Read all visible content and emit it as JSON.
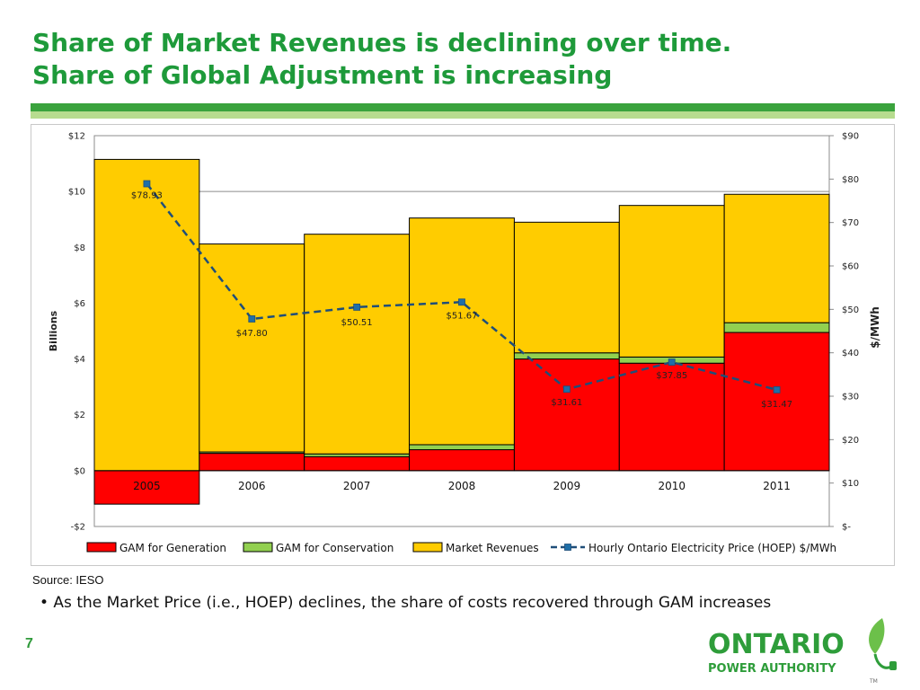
{
  "header": {
    "title_line1": "Share of Market Revenues is declining over time.",
    "title_line2": "Share of  Global Adjustment is increasing"
  },
  "colors": {
    "title_green": "#1e9a3a",
    "gam_generation": "#ff0000",
    "gam_conservation": "#92d050",
    "market_revenues": "#ffcc00",
    "hoep_line": "#1f4e79",
    "hoep_marker": "#1f6fa8"
  },
  "chart_data": {
    "type": "bar",
    "stacked": true,
    "categories": [
      "2005",
      "2006",
      "2007",
      "2008",
      "2009",
      "2010",
      "2011"
    ],
    "series": [
      {
        "name": "GAM for Generation",
        "type": "bar",
        "axis": "left",
        "values": [
          -1.2,
          0.62,
          0.5,
          0.75,
          4.0,
          3.85,
          4.95
        ]
      },
      {
        "name": "GAM for Conservation",
        "type": "bar",
        "axis": "left",
        "values": [
          0,
          0.05,
          0.1,
          0.18,
          0.22,
          0.22,
          0.35
        ]
      },
      {
        "name": "Market Revenues",
        "type": "bar",
        "axis": "left",
        "values": [
          11.15,
          7.45,
          7.87,
          8.12,
          4.68,
          5.43,
          4.6
        ]
      },
      {
        "name": "Hourly Ontario Electricity Price (HOEP) $/MWh",
        "type": "line",
        "axis": "right",
        "values": [
          78.93,
          47.8,
          50.51,
          51.67,
          31.61,
          37.85,
          31.47
        ]
      }
    ],
    "hoep_labels": [
      "$78.93",
      "$47.80",
      "$50.51",
      "$51.67",
      "$31.61",
      "$37.85",
      "$31.47"
    ],
    "ylabel": "Billions",
    "y2label": "$/MWh",
    "ylim": [
      -2,
      12
    ],
    "y2lim": [
      0,
      90
    ],
    "yticks": [
      -2,
      0,
      2,
      4,
      6,
      8,
      10,
      12
    ],
    "yticklabels": [
      "-$2",
      "$0",
      "$2",
      "$4",
      "$6",
      "$8",
      "$10",
      "$12"
    ],
    "y2ticks": [
      0,
      10,
      20,
      30,
      40,
      50,
      60,
      70,
      80,
      90
    ],
    "y2ticklabels": [
      "$-",
      "$10",
      "$20",
      "$30",
      "$40",
      "$50",
      "$60",
      "$70",
      "$80",
      "$90"
    ],
    "grid": "horizontal",
    "legend_position": "bottom"
  },
  "footer": {
    "source": "Source: IESO",
    "bullet": "• As the Market Price (i.e., HOEP) declines, the share of costs recovered through GAM increases",
    "page_number": "7",
    "logo_line1": "ONTARIO",
    "logo_line2": "POWER AUTHORITY",
    "logo_mark": "TM"
  }
}
